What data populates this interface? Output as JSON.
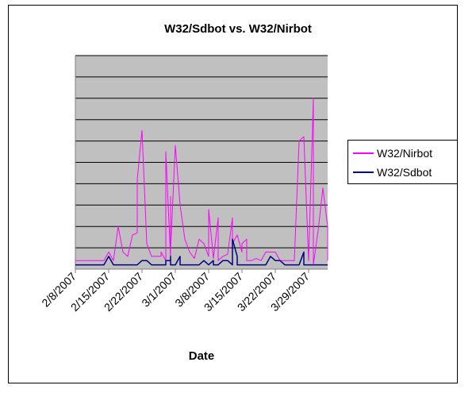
{
  "chart_data": {
    "type": "line",
    "title": "W32/Sdbot vs. W32/Nirbot",
    "xlabel": "Date",
    "ylabel": "",
    "x_start": "2/8/2007",
    "x_end": "4/2/2007",
    "x_ticks": [
      "2/8/2007",
      "2/15/2007",
      "2/22/2007",
      "3/1/2007",
      "3/8/2007",
      "3/15/2007",
      "3/22/2007",
      "3/29/2007"
    ],
    "ylim": [
      0,
      1
    ],
    "y_gridlines": 9,
    "grid": true,
    "plot_background": "#c0c0c0",
    "legend_position": "right",
    "series": [
      {
        "name": "W32/Nirbot",
        "color": "#ff00ff",
        "points": [
          [
            "2/8/2007",
            0.04
          ],
          [
            "2/14/2007",
            0.04
          ],
          [
            "2/15/2007",
            0.08
          ],
          [
            "2/16/2007",
            0.04
          ],
          [
            "2/17/2007",
            0.2
          ],
          [
            "2/18/2007",
            0.08
          ],
          [
            "2/19/2007",
            0.06
          ],
          [
            "2/20/2007",
            0.16
          ],
          [
            "2/21/2007",
            0.17
          ],
          [
            "2/21/2007",
            0.42
          ],
          [
            "2/22/2007",
            0.65
          ],
          [
            "2/23/2007",
            0.12
          ],
          [
            "2/24/2007",
            0.06
          ],
          [
            "2/26/2007",
            0.06
          ],
          [
            "2/26/2007",
            0.08
          ],
          [
            "2/27/2007",
            0.04
          ],
          [
            "2/27/2007",
            0.55
          ],
          [
            "2/28/2007",
            0.05
          ],
          [
            "2/28/2007",
            0.34
          ],
          [
            "2/28/2007",
            0.09
          ],
          [
            "3/1/2007",
            0.58
          ],
          [
            "3/2/2007",
            0.3
          ],
          [
            "3/3/2007",
            0.14
          ],
          [
            "3/4/2007",
            0.08
          ],
          [
            "3/5/2007",
            0.05
          ],
          [
            "3/6/2007",
            0.14
          ],
          [
            "3/7/2007",
            0.12
          ],
          [
            "3/8/2007",
            0.06
          ],
          [
            "3/8/2007",
            0.28
          ],
          [
            "3/9/2007",
            0.05
          ],
          [
            "3/10/2007",
            0.24
          ],
          [
            "3/10/2007",
            0.04
          ],
          [
            "3/11/2007",
            0.06
          ],
          [
            "3/12/2007",
            0.07
          ],
          [
            "3/13/2007",
            0.24
          ],
          [
            "3/13/2007",
            0.12
          ],
          [
            "3/14/2007",
            0.16
          ],
          [
            "3/15/2007",
            0.08
          ],
          [
            "3/15/2007",
            0.12
          ],
          [
            "3/16/2007",
            0.14
          ],
          [
            "3/16/2007",
            0.04
          ],
          [
            "3/17/2007",
            0.04
          ],
          [
            "3/18/2007",
            0.05
          ],
          [
            "3/19/2007",
            0.04
          ],
          [
            "3/20/2007",
            0.08
          ],
          [
            "3/22/2007",
            0.08
          ],
          [
            "3/23/2007",
            0.04
          ],
          [
            "3/25/2007",
            0.04
          ],
          [
            "3/26/2007",
            0.04
          ],
          [
            "3/27/2007",
            0.6
          ],
          [
            "3/28/2007",
            0.62
          ],
          [
            "3/29/2007",
            0.04
          ],
          [
            "3/30/2007",
            0.8
          ],
          [
            "3/30/2007",
            0.02
          ],
          [
            "3/31/2007",
            0.18
          ],
          [
            "4/1/2007",
            0.38
          ],
          [
            "4/2/2007",
            0.2
          ],
          [
            "4/2/2007",
            0.04
          ]
        ]
      },
      {
        "name": "W32/Sdbot",
        "color": "#000080",
        "points": [
          [
            "2/8/2007",
            0.02
          ],
          [
            "2/14/2007",
            0.02
          ],
          [
            "2/15/2007",
            0.06
          ],
          [
            "2/16/2007",
            0.02
          ],
          [
            "2/21/2007",
            0.02
          ],
          [
            "2/22/2007",
            0.04
          ],
          [
            "2/23/2007",
            0.04
          ],
          [
            "2/24/2007",
            0.02
          ],
          [
            "2/27/2007",
            0.02
          ],
          [
            "2/27/2007",
            0.04
          ],
          [
            "2/28/2007",
            0.04
          ],
          [
            "2/28/2007",
            0.06
          ],
          [
            "2/28/2007",
            0.02
          ],
          [
            "3/1/2007",
            0.02
          ],
          [
            "3/2/2007",
            0.06
          ],
          [
            "3/2/2007",
            0.02
          ],
          [
            "3/6/2007",
            0.02
          ],
          [
            "3/7/2007",
            0.04
          ],
          [
            "3/8/2007",
            0.02
          ],
          [
            "3/9/2007",
            0.04
          ],
          [
            "3/9/2007",
            0.02
          ],
          [
            "3/10/2007",
            0.02
          ],
          [
            "3/11/2007",
            0.04
          ],
          [
            "3/12/2007",
            0.04
          ],
          [
            "3/13/2007",
            0.02
          ],
          [
            "3/13/2007",
            0.14
          ],
          [
            "3/14/2007",
            0.06
          ],
          [
            "3/14/2007",
            0.02
          ],
          [
            "3/20/2007",
            0.02
          ],
          [
            "3/21/2007",
            0.06
          ],
          [
            "3/22/2007",
            0.04
          ],
          [
            "3/23/2007",
            0.04
          ],
          [
            "3/24/2007",
            0.02
          ],
          [
            "3/27/2007",
            0.02
          ],
          [
            "3/28/2007",
            0.08
          ],
          [
            "3/28/2007",
            0.02
          ],
          [
            "4/2/2007",
            0.02
          ]
        ]
      }
    ]
  }
}
